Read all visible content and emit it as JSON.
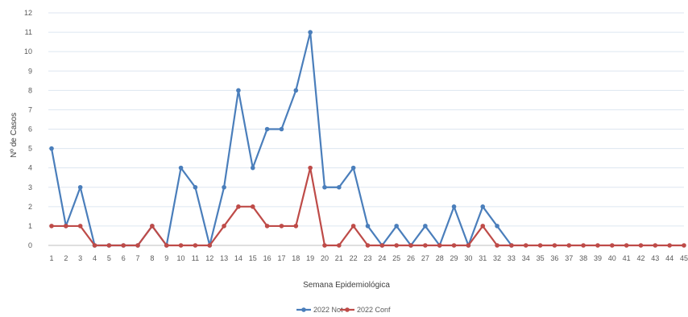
{
  "chart_data": {
    "type": "line",
    "title": "",
    "xlabel": "Semana  Epidemiológica",
    "ylabel": "Nº de Casos",
    "ylim": [
      0,
      12
    ],
    "yticks": [
      "0",
      "1",
      "2",
      "3",
      "4",
      "5",
      "6",
      "7",
      "8",
      "9",
      "10",
      "11",
      "12"
    ],
    "grid": "horizontal",
    "legend_position": "bottom",
    "categories": [
      "1",
      "2",
      "3",
      "4",
      "5",
      "6",
      "7",
      "8",
      "9",
      "10",
      "11",
      "12",
      "13",
      "14",
      "15",
      "16",
      "17",
      "18",
      "19",
      "20",
      "21",
      "22",
      "23",
      "24",
      "25",
      "26",
      "27",
      "28",
      "29",
      "30",
      "31",
      "32",
      "33",
      "34",
      "35",
      "36",
      "37",
      "38",
      "39",
      "40",
      "41",
      "42",
      "43",
      "44",
      "45"
    ],
    "series": [
      {
        "name": "2022 Not",
        "color": "#4a7ebb",
        "values": [
          5,
          1,
          3,
          0,
          0,
          0,
          0,
          1,
          0,
          4,
          3,
          0,
          3,
          8,
          4,
          6,
          6,
          8,
          11,
          3,
          3,
          4,
          1,
          0,
          1,
          0,
          1,
          0,
          2,
          0,
          2,
          1,
          0,
          null,
          null,
          null,
          null,
          null,
          null,
          null,
          null,
          null,
          null,
          null,
          null
        ]
      },
      {
        "name": "2022 Conf",
        "color": "#be4b48",
        "values": [
          1,
          1,
          1,
          0,
          0,
          0,
          0,
          1,
          0,
          0,
          0,
          0,
          1,
          2,
          2,
          1,
          1,
          1,
          4,
          0,
          0,
          1,
          0,
          0,
          0,
          0,
          0,
          0,
          0,
          0,
          1,
          0,
          0,
          0,
          0,
          0,
          0,
          0,
          0,
          0,
          0,
          0,
          0,
          0,
          0
        ]
      }
    ]
  }
}
